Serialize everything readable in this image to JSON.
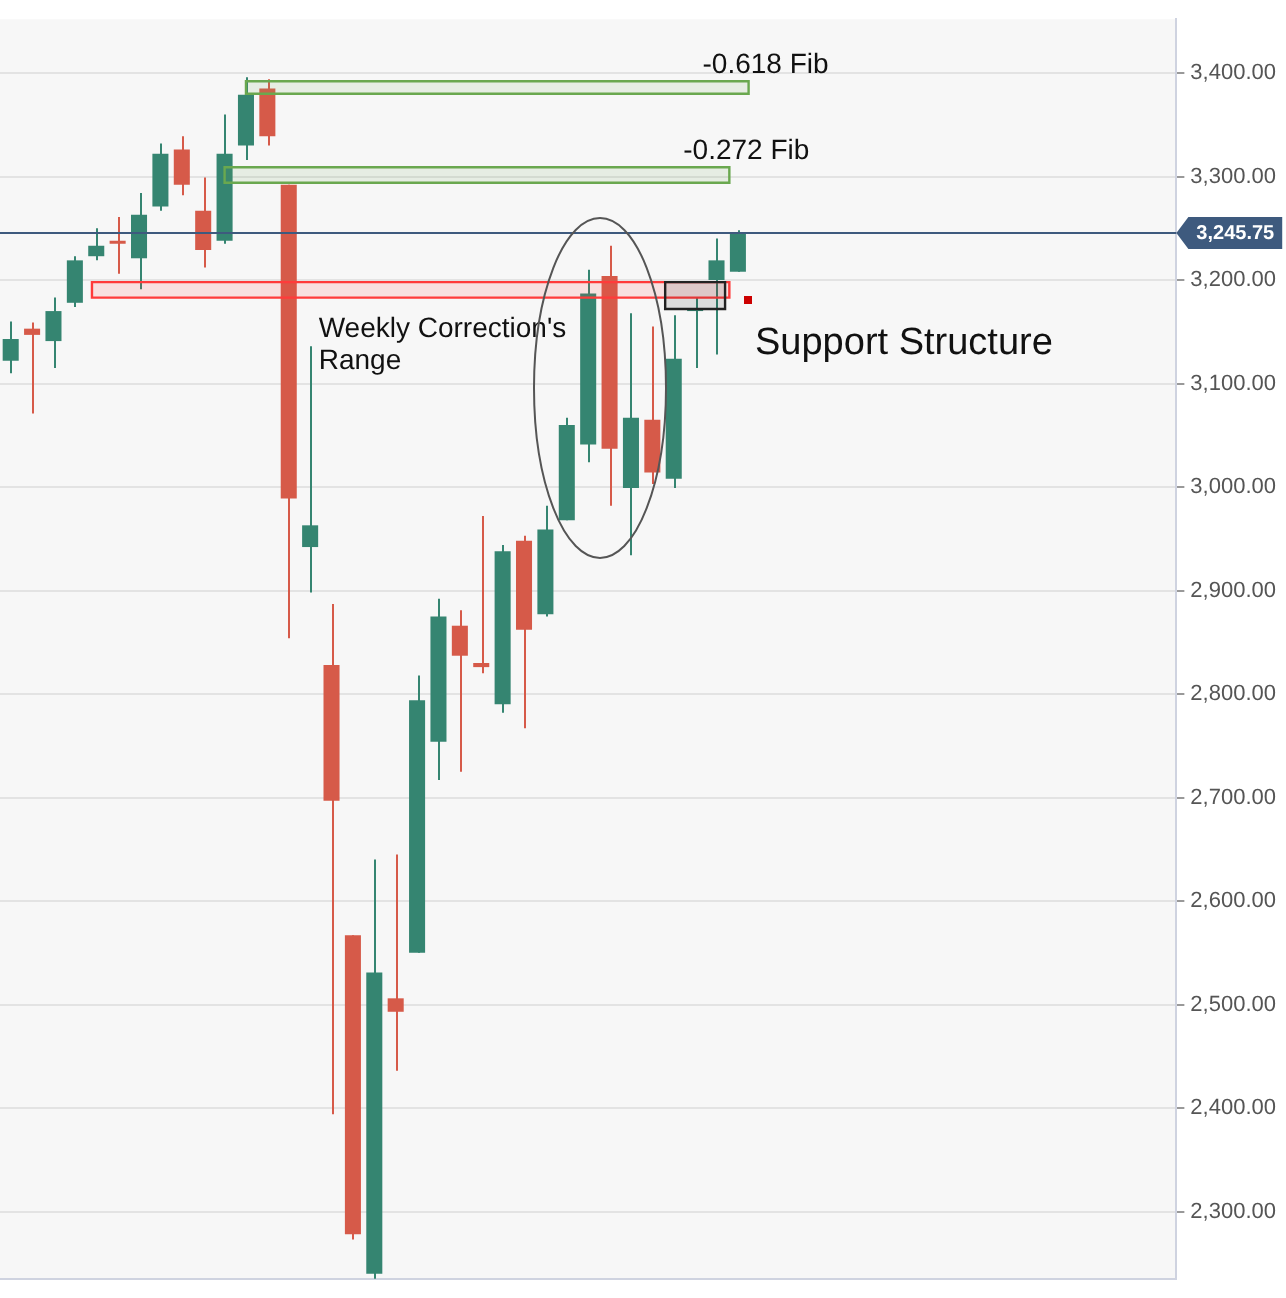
{
  "chart_data": {
    "type": "candlestick",
    "categories": [
      null,
      null,
      null,
      null,
      null,
      null,
      null,
      null,
      null,
      null,
      null,
      null,
      null,
      null,
      null,
      null,
      null,
      null,
      null,
      null,
      null,
      null,
      null,
      null,
      null,
      null,
      null,
      null,
      null,
      null,
      null,
      null,
      null,
      null,
      null,
      null,
      null,
      null,
      null,
      null,
      null,
      null,
      null,
      null,
      null,
      null,
      null,
      null,
      null,
      null,
      null,
      null,
      null,
      null,
      null
    ],
    "ohlc": [
      [
        3122,
        3160,
        3110,
        3143
      ],
      [
        3153,
        3159,
        3071,
        3147
      ],
      [
        3141,
        3183,
        3115,
        3170
      ],
      [
        3178,
        3223,
        3174,
        3219
      ],
      [
        3223,
        3250,
        3219,
        3233
      ],
      [
        3238,
        3261,
        3206,
        3235
      ],
      [
        3221,
        3284,
        3191,
        3263
      ],
      [
        3271,
        3332,
        3267,
        3322
      ],
      [
        3326,
        3339,
        3282,
        3292
      ],
      [
        3267,
        3299,
        3212,
        3229
      ],
      [
        3238,
        3360,
        3235,
        3322
      ],
      [
        3330,
        3396,
        3316,
        3379
      ],
      [
        3385,
        3394,
        3330,
        3339
      ],
      [
        3292,
        3292,
        2854,
        2989
      ],
      [
        2942,
        3136,
        2898,
        2963
      ],
      [
        2828,
        2887,
        2394,
        2697
      ],
      [
        2567,
        2567,
        2273,
        2278
      ],
      [
        2240,
        2640,
        2235,
        2531
      ],
      [
        2506,
        2645,
        2436,
        2493
      ],
      [
        2550,
        2818,
        2550,
        2794
      ],
      [
        2754,
        2892,
        2717,
        2875
      ],
      [
        2866,
        2881,
        2725,
        2837
      ],
      [
        2830,
        2972,
        2820,
        2826
      ],
      [
        2790,
        2944,
        2782,
        2938
      ],
      [
        2948,
        2953,
        2767,
        2862
      ],
      [
        2877,
        2982,
        2875,
        2959
      ],
      [
        2968,
        3067,
        2968,
        3060
      ],
      [
        3041,
        3210,
        3024,
        3187
      ],
      [
        3204,
        3233,
        2982,
        3037
      ],
      [
        2999,
        3168,
        2934,
        3067
      ],
      [
        3065,
        3155,
        3003,
        3014
      ],
      [
        3008,
        3166,
        2999,
        3124
      ],
      [
        3170,
        3183,
        3115,
        3172
      ],
      [
        3200,
        3240,
        3128,
        3219
      ],
      [
        3208,
        3248,
        3208,
        3245.75
      ],
      null,
      null,
      null,
      null,
      null,
      null,
      null,
      null,
      null,
      null,
      null,
      null,
      null,
      null,
      null,
      null,
      null,
      null,
      null,
      null
    ],
    "colors": [
      "#358571",
      "#d65a49",
      "#358571",
      "#358571",
      "#358571",
      "#d65a49",
      "#358571",
      "#358571",
      "#d65a49",
      "#d65a49",
      "#358571",
      "#358571",
      "#d65a49",
      "#d65a49",
      "#358571",
      "#d65a49",
      "#d65a49",
      "#358571",
      "#d65a49",
      "#358571",
      "#358571",
      "#d65a49",
      "#d65a49",
      "#358571",
      "#d65a49",
      "#358571",
      "#358571",
      "#358571",
      "#d65a49",
      "#358571",
      "#d65a49",
      "#358571",
      "#358571",
      "#358571",
      "#358571",
      null,
      null,
      null,
      null,
      null,
      null,
      null,
      null,
      null,
      null,
      null,
      null,
      null,
      null,
      null,
      null,
      null,
      null,
      null,
      null
    ],
    "ylim": [
      2235,
      3452
    ],
    "yticks": [
      {
        "value": 2300,
        "label": "2,300.00"
      },
      {
        "value": 2400,
        "label": "2,400.00"
      },
      {
        "value": 2500,
        "label": "2,500.00"
      },
      {
        "value": 2600,
        "label": "2,600.00"
      },
      {
        "value": 2700,
        "label": "2,700.00"
      },
      {
        "value": 2800,
        "label": "2,800.00"
      },
      {
        "value": 2900,
        "label": "2,900.00"
      },
      {
        "value": 3000,
        "label": "3,000.00"
      },
      {
        "value": 3100,
        "label": "3,100.00"
      },
      {
        "value": 3200,
        "label": "3,200.00"
      },
      {
        "value": 3300,
        "label": "3,300.00"
      },
      {
        "value": 3400,
        "label": "3,400.00"
      }
    ],
    "tick_labels": "y",
    "grid": "y",
    "ref_lines": [
      {
        "axis": "y",
        "value": 3245.75,
        "label": "3,245.75",
        "color": "#3e5a7e"
      }
    ],
    "bands": [
      {
        "axis": "y",
        "from": 3380,
        "to": 3392,
        "label": "-0.618 Fib",
        "color": "#6aa84f"
      },
      {
        "axis": "y",
        "from": 3294,
        "to": 3309,
        "label": "-0.272 Fib",
        "color": "#6aa84f"
      },
      {
        "axis": "y",
        "from": 3183,
        "to": 3198,
        "label": "Weekly Correction's Range",
        "color": "#ff3b3b"
      },
      {
        "axis": "y",
        "from": 3172,
        "to": 3198,
        "color": "#222222"
      }
    ],
    "annotations": [
      "Support Structure"
    ]
  }
}
